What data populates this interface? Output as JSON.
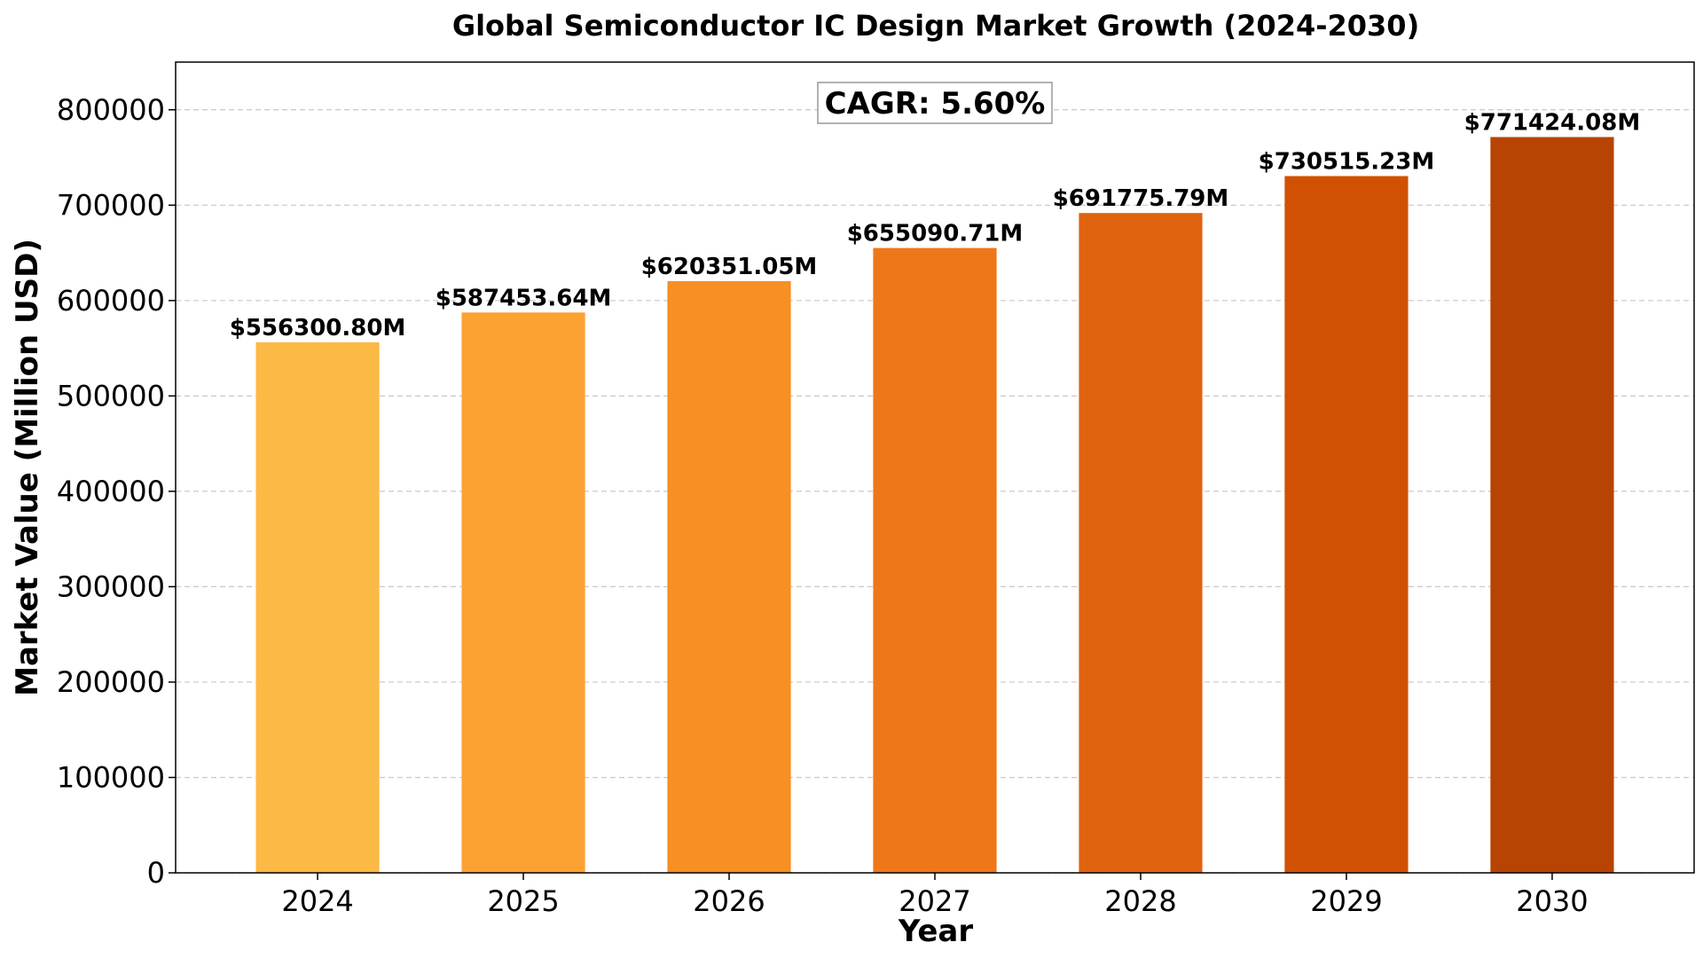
{
  "chart_data": {
    "type": "bar",
    "title": "Global Semiconductor IC Design Market Growth (2024-2030)",
    "xlabel": "Year",
    "ylabel": "Market Value (Million USD)",
    "categories": [
      "2024",
      "2025",
      "2026",
      "2027",
      "2028",
      "2029",
      "2030"
    ],
    "values": [
      556300.8,
      587453.64,
      620351.05,
      655090.71,
      691775.79,
      730515.23,
      771424.08
    ],
    "data_labels": [
      "$556300.80M",
      "$587453.64M",
      "$620351.05M",
      "$655090.71M",
      "$691775.79M",
      "$730515.23M",
      "$771424.08M"
    ],
    "colors": [
      "#FDB945",
      "#FCA233",
      "#F78F22",
      "#EE771A",
      "#E06310",
      "#D15102",
      "#B84403"
    ],
    "ylim": [
      0,
      850000
    ],
    "yticks": [
      0,
      100000,
      200000,
      300000,
      400000,
      500000,
      600000,
      700000,
      800000
    ],
    "grid": true,
    "annotation": "CAGR: 5.60%"
  }
}
